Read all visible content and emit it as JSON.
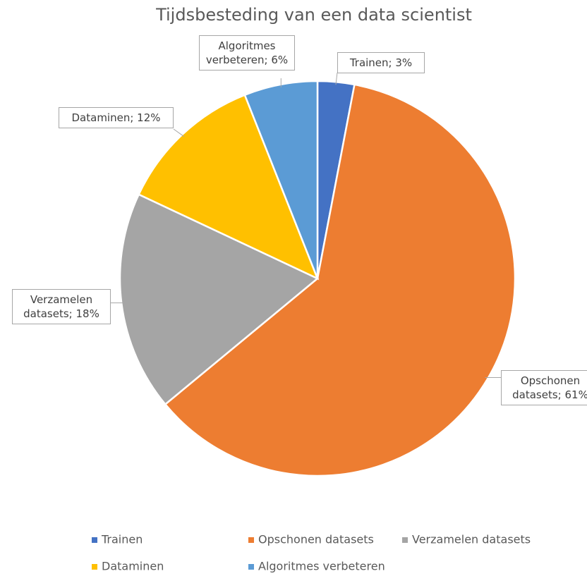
{
  "chart_data": {
    "type": "pie",
    "title": "Tijdsbesteding van een data scientist",
    "categories": [
      "Trainen",
      "Opschonen datasets",
      "Verzamelen datasets",
      "Dataminen",
      "Algoritmes verbeteren"
    ],
    "values": [
      3,
      61,
      18,
      12,
      6
    ],
    "value_labels": [
      "Trainen; 3%",
      "Opschonen datasets; 61%",
      "Verzamelen datasets; 18%",
      "Dataminen; 12%",
      "Algoritmes verbeteren; 6%"
    ],
    "colors": [
      "#4472c4",
      "#ed7d31",
      "#a5a5a5",
      "#ffc000",
      "#5b9bd5"
    ],
    "legend": "bottom"
  }
}
